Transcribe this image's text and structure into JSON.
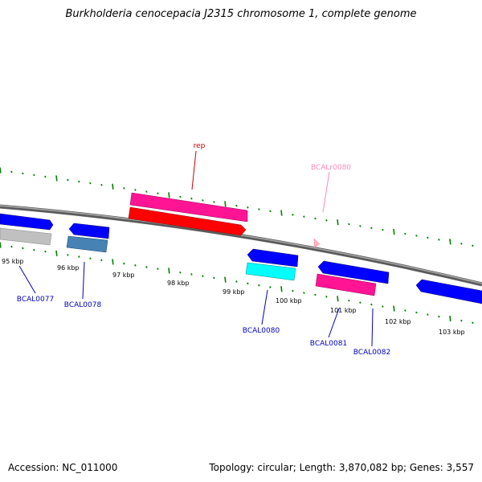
{
  "title": "Burkholderia cenocepacia J2315 chromosome 1, complete genome",
  "accession": "Accession: NC_011000",
  "stats": "Topology: circular; Length: 3,870,082 bp; Genes: 3,557",
  "colors": {
    "backbone": "#808080",
    "cds_blue": "#0000ff",
    "cds_gray": "#c0c0c0",
    "cds_steel": "#4682b4",
    "cds_cyan": "#00ffff",
    "cds_pink": "#ff1493",
    "cds_red": "#ff0000",
    "rrna_pink": "#ffb6c1",
    "tick_green": "#008000",
    "label_blue": "#0000c0",
    "label_red": "#cc0000",
    "label_pink": "#ff88bb"
  },
  "kbp_labels": [
    "95 kbp",
    "96 kbp",
    "97 kbp",
    "98 kbp",
    "99 kbp",
    "100 kbp",
    "101 kbp",
    "102 kbp",
    "103 kbp"
  ],
  "gene_labels": {
    "rep": "rep",
    "bcalr0080": "BCALr0080",
    "bcal0077": "BCAL0077",
    "bcal0078": "BCAL0078",
    "bcal0080": "BCAL0080",
    "bcal0081": "BCAL0081",
    "bcal0082": "BCAL0082"
  }
}
